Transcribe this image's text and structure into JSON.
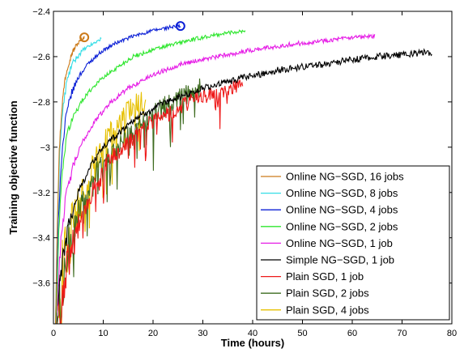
{
  "chart_data": {
    "type": "line",
    "title": "",
    "xlabel": "Time (hours)",
    "ylabel": "Training objective function",
    "xlim": [
      0,
      80
    ],
    "ylim": [
      -3.78,
      -2.4
    ],
    "xticks": [
      0,
      10,
      20,
      30,
      40,
      50,
      60,
      70,
      80
    ],
    "yticks": [
      -3.6,
      -3.4,
      -3.2,
      -3,
      -2.8,
      -2.6,
      -2.4
    ],
    "xtick_labels": [
      "0",
      "10",
      "20",
      "30",
      "40",
      "50",
      "60",
      "70",
      "80"
    ],
    "ytick_labels": [
      "−3.6",
      "−3.4",
      "−3.2",
      "−3",
      "−2.8",
      "−2.6",
      "−2.4"
    ],
    "grid": false,
    "legend_position": "bottom-right",
    "series": [
      {
        "name": "Online NG−SGD, 16 jobs",
        "color": "#cc7a1a",
        "noise": 0.006,
        "marker": "circle",
        "x": [
          0.4,
          0.8,
          1.2,
          1.7,
          2.3,
          3.0,
          3.8,
          4.6,
          5.4,
          6.2
        ],
        "y": [
          -3.8,
          -3.3,
          -3.0,
          -2.82,
          -2.7,
          -2.63,
          -2.58,
          -2.55,
          -2.53,
          -2.515
        ]
      },
      {
        "name": "Online NG−SGD, 8 jobs",
        "color": "#33dde6",
        "noise": 0.007,
        "marker": "",
        "x": [
          0.4,
          0.8,
          1.2,
          1.8,
          2.6,
          3.6,
          4.8,
          6.0,
          7.4,
          8.6,
          9.6
        ],
        "y": [
          -3.8,
          -3.35,
          -3.05,
          -2.85,
          -2.72,
          -2.64,
          -2.6,
          -2.57,
          -2.55,
          -2.535,
          -2.52
        ]
      },
      {
        "name": "Online NG−SGD, 4 jobs",
        "color": "#0b1fd6",
        "noise": 0.008,
        "marker": "circle",
        "x": [
          0.4,
          1.0,
          1.6,
          2.5,
          3.5,
          5.0,
          7.0,
          9.5,
          12.5,
          16.0,
          20.0,
          23.5,
          25.5
        ],
        "y": [
          -3.8,
          -3.3,
          -3.05,
          -2.87,
          -2.77,
          -2.69,
          -2.63,
          -2.58,
          -2.54,
          -2.51,
          -2.485,
          -2.47,
          -2.465
        ]
      },
      {
        "name": "Online NG−SGD, 2 jobs",
        "color": "#2ee62e",
        "noise": 0.009,
        "marker": "",
        "x": [
          0.5,
          1.2,
          2.0,
          3.0,
          4.5,
          6.5,
          9.0,
          12.0,
          16.0,
          20.0,
          25.0,
          30.0,
          35.0,
          38.5
        ],
        "y": [
          -3.8,
          -3.3,
          -3.05,
          -2.92,
          -2.84,
          -2.77,
          -2.71,
          -2.66,
          -2.6,
          -2.57,
          -2.54,
          -2.515,
          -2.495,
          -2.485
        ]
      },
      {
        "name": "Online NG−SGD, 1 job",
        "color": "#e61ee6",
        "noise": 0.01,
        "marker": "",
        "x": [
          0.5,
          1.5,
          2.5,
          4.0,
          6.0,
          8.5,
          11.5,
          15.0,
          20.0,
          26.0,
          33.0,
          40.0,
          48.0,
          56.0,
          64.5
        ],
        "y": [
          -3.8,
          -3.4,
          -3.22,
          -3.08,
          -2.97,
          -2.88,
          -2.8,
          -2.74,
          -2.68,
          -2.63,
          -2.6,
          -2.57,
          -2.545,
          -2.525,
          -2.51
        ]
      },
      {
        "name": "Simple NG−SGD, 1 job",
        "color": "#000000",
        "noise": 0.015,
        "marker": "",
        "x": [
          0.5,
          1.5,
          3.0,
          5.0,
          7.5,
          10.0,
          13.0,
          16.0,
          20.0,
          25.0,
          30.0,
          37.0,
          45.0,
          55.0,
          65.0,
          76.0
        ],
        "y": [
          -3.8,
          -3.55,
          -3.35,
          -3.2,
          -3.08,
          -3.0,
          -2.94,
          -2.88,
          -2.83,
          -2.78,
          -2.74,
          -2.7,
          -2.66,
          -2.63,
          -2.6,
          -2.58
        ]
      },
      {
        "name": "Plain SGD, 1 job",
        "color": "#ee1a1a",
        "noise": 0.035,
        "marker": "",
        "x": [
          0.5,
          1.5,
          3.0,
          5.0,
          8.0,
          11.0,
          15.0,
          19.0,
          24.0,
          29.0,
          34.0,
          38.0
        ],
        "y": [
          -3.8,
          -3.7,
          -3.5,
          -3.35,
          -3.18,
          -3.06,
          -2.98,
          -2.9,
          -2.84,
          -2.78,
          -2.75,
          -2.72
        ]
      },
      {
        "name": "Plain SGD, 2 jobs",
        "color": "#3d6b1f",
        "noise": 0.045,
        "marker": "",
        "x": [
          0.5,
          1.5,
          3.0,
          5.0,
          8.0,
          11.0,
          15.0,
          19.0,
          23.0,
          26.5,
          29.5
        ],
        "y": [
          -3.8,
          -3.62,
          -3.45,
          -3.3,
          -3.13,
          -3.03,
          -2.94,
          -2.87,
          -2.81,
          -2.77,
          -2.74
        ]
      },
      {
        "name": "Plain SGD, 4 jobs",
        "color": "#e6c000",
        "noise": 0.06,
        "marker": "",
        "x": [
          0.5,
          1.5,
          2.5,
          4.0,
          6.0,
          8.0,
          10.5,
          13.0,
          15.5,
          18.5
        ],
        "y": [
          -3.8,
          -3.62,
          -3.48,
          -3.34,
          -3.2,
          -3.08,
          -2.98,
          -2.9,
          -2.84,
          -2.79
        ]
      }
    ]
  }
}
